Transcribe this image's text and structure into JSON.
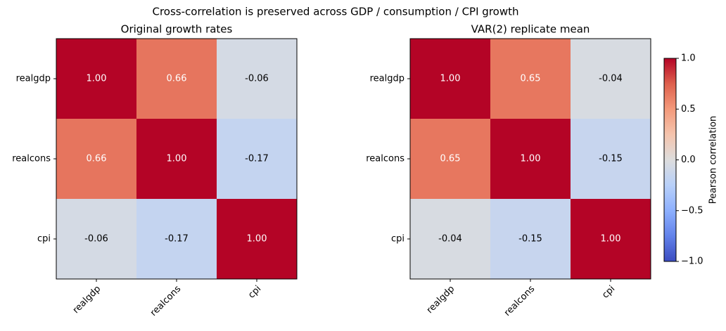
{
  "suptitle": "Cross-correlation is preserved across GDP / consumption / CPI growth",
  "chart_data": [
    {
      "type": "heatmap",
      "title": "Original growth rates",
      "x_categories": [
        "realgdp",
        "realcons",
        "cpi"
      ],
      "y_categories": [
        "realgdp",
        "realcons",
        "cpi"
      ],
      "values": [
        [
          1,
          0.66,
          -0.06
        ],
        [
          0.66,
          1,
          -0.17
        ],
        [
          -0.06,
          -0.17,
          1
        ]
      ],
      "value_labels": [
        [
          "1.00",
          "0.66",
          "-0.06"
        ],
        [
          "0.66",
          "1.00",
          "-0.17"
        ],
        [
          "-0.06",
          "-0.17",
          "1.00"
        ]
      ],
      "colormap": "coolwarm",
      "clim": [
        -1,
        1
      ]
    },
    {
      "type": "heatmap",
      "title": "VAR(2) replicate mean",
      "x_categories": [
        "realgdp",
        "realcons",
        "cpi"
      ],
      "y_categories": [
        "realgdp",
        "realcons",
        "cpi"
      ],
      "values": [
        [
          1,
          0.65,
          -0.04
        ],
        [
          0.65,
          1,
          -0.15
        ],
        [
          -0.04,
          -0.15,
          1
        ]
      ],
      "value_labels": [
        [
          "1.00",
          "0.65",
          "-0.04"
        ],
        [
          "0.65",
          "1.00",
          "-0.15"
        ],
        [
          "-0.04",
          "-0.15",
          "1.00"
        ]
      ],
      "colormap": "coolwarm",
      "clim": [
        -1,
        1
      ],
      "colorbar": {
        "label": "Pearson correlation",
        "lim": [
          -1,
          1
        ],
        "ticks": [
          {
            "value": -1,
            "label": "−1.0"
          },
          {
            "value": -0.5,
            "label": "−0.5"
          },
          {
            "value": 0,
            "label": "0.0"
          },
          {
            "value": 0.5,
            "label": "0.5"
          },
          {
            "value": 1,
            "label": "1.0"
          }
        ]
      }
    }
  ]
}
